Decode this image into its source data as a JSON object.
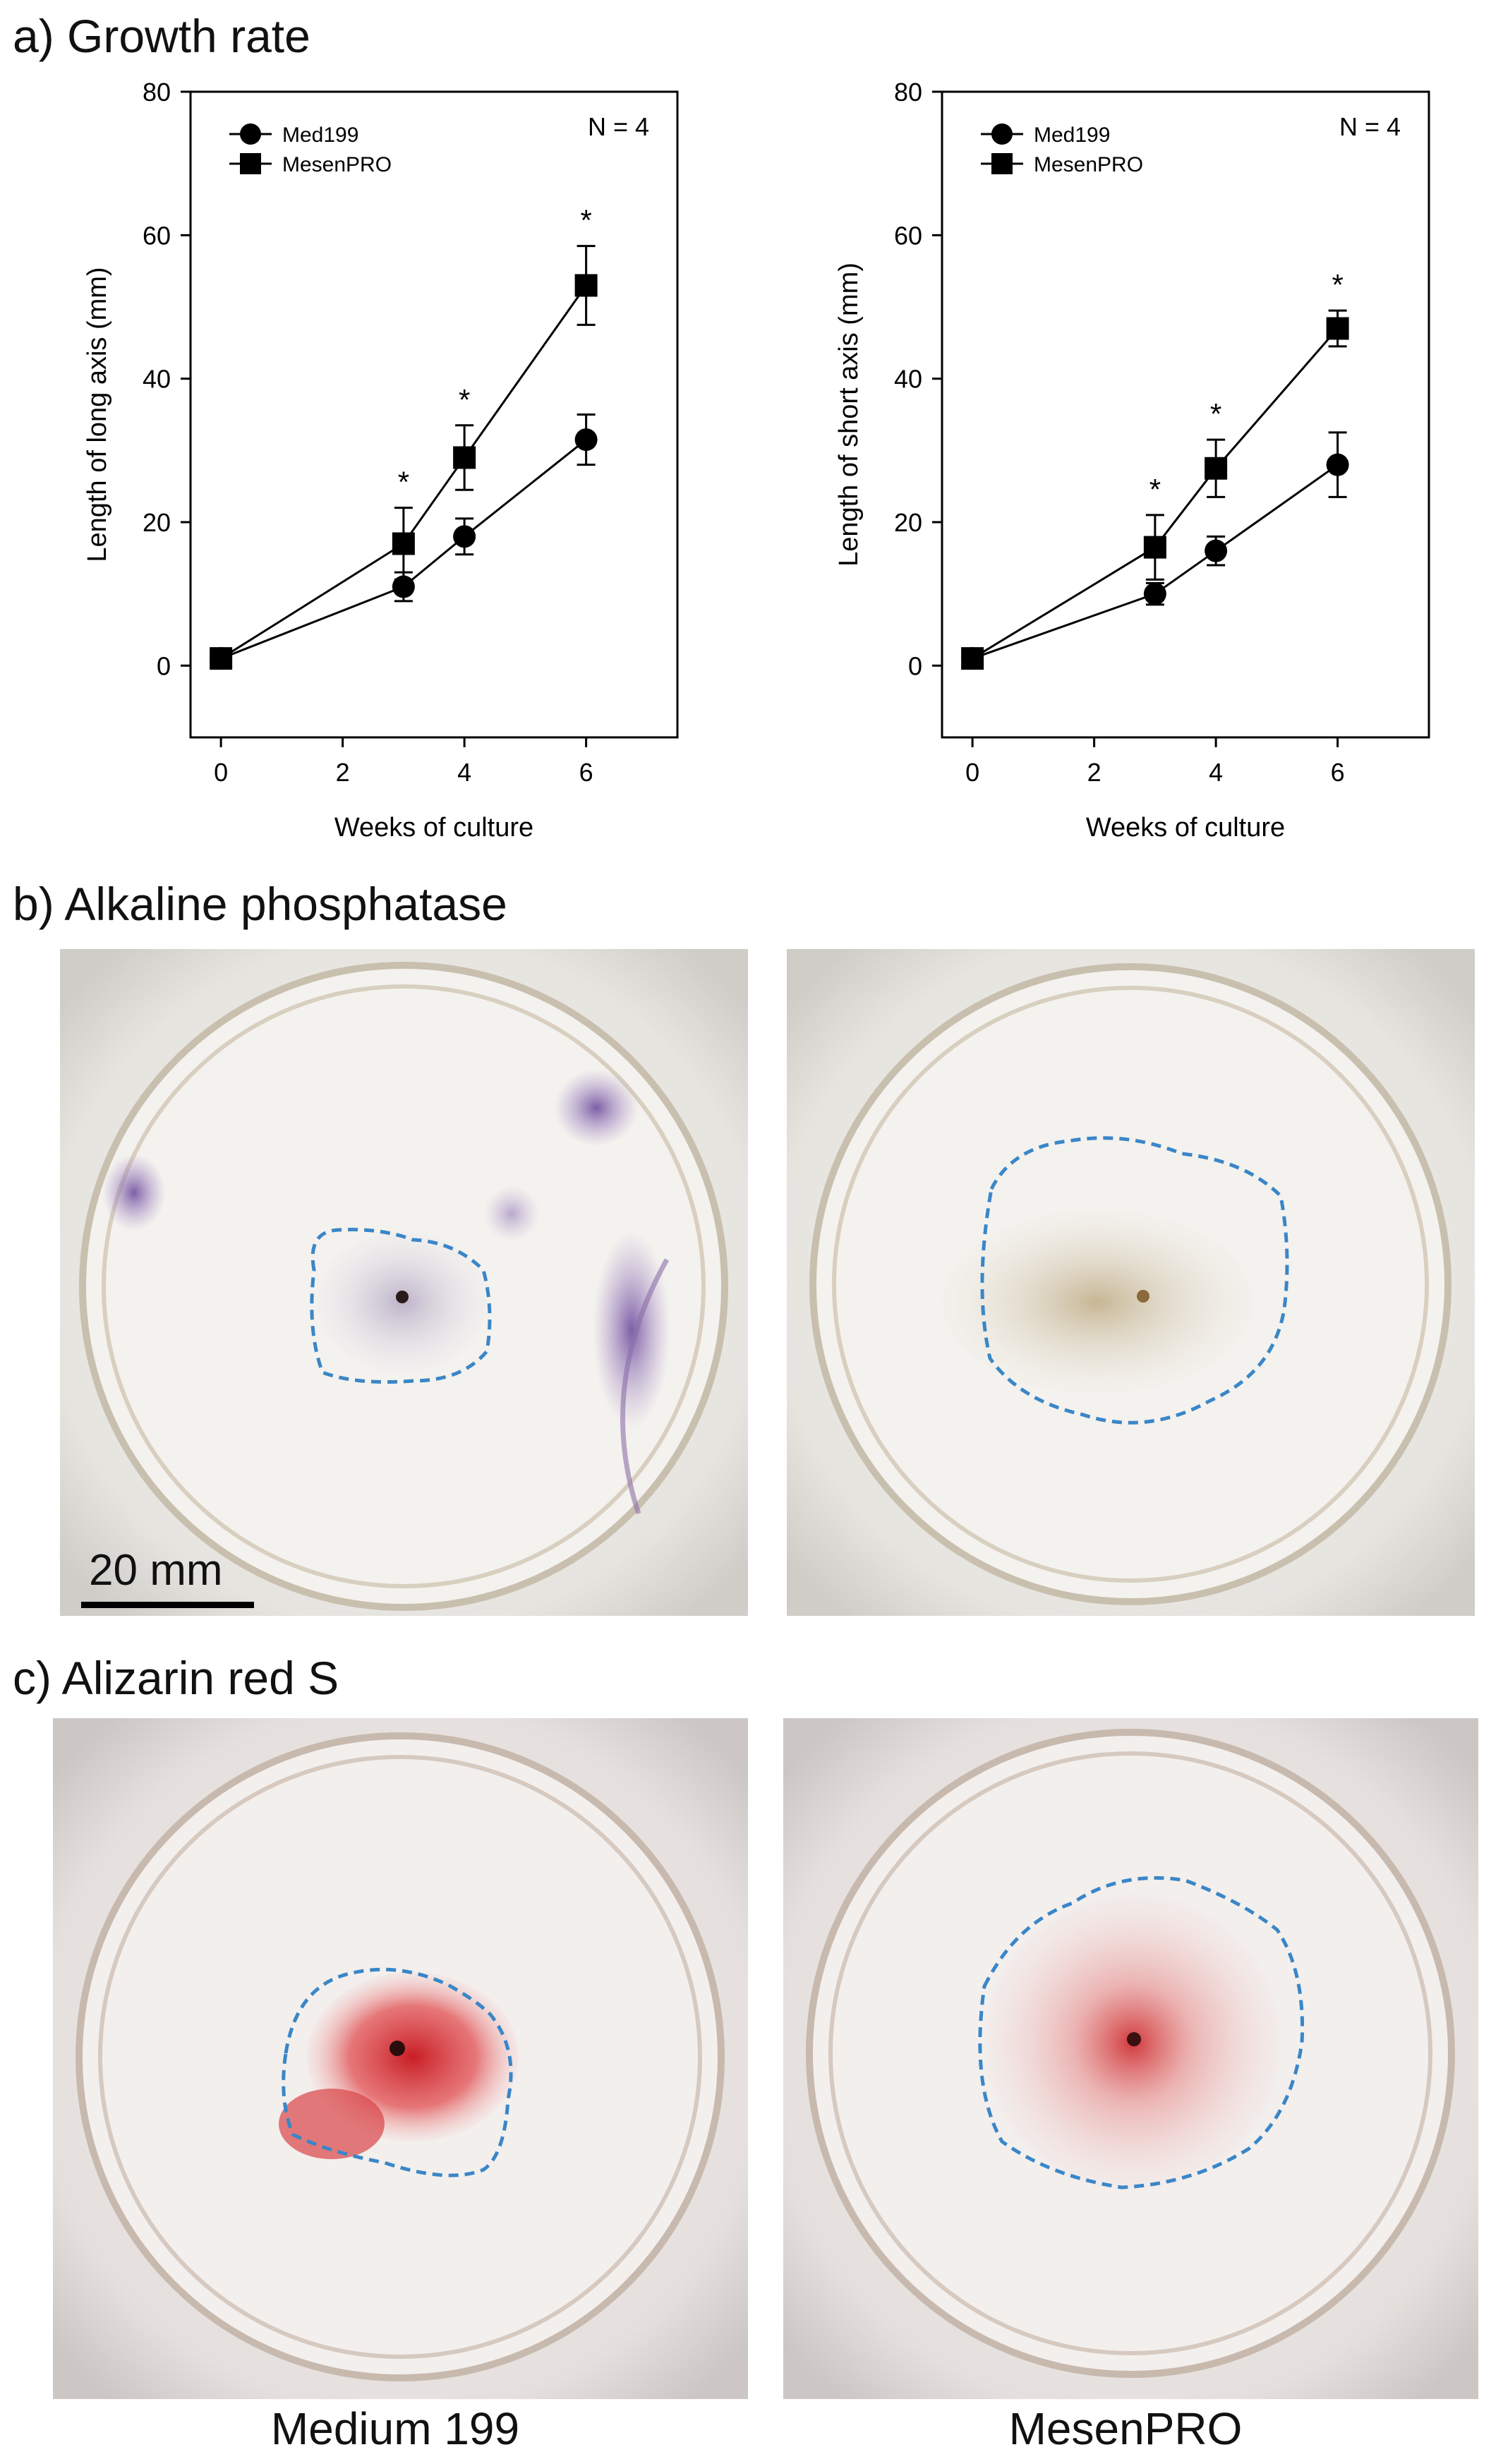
{
  "headings": {
    "a": "a) Growth rate",
    "b": "b) Alkaline phosphatase",
    "c": "c) Alizarin red S"
  },
  "scale_bar_label": "20 mm",
  "captions": [
    "Medium 199",
    "MesenPRO"
  ],
  "colors": {
    "outline_dash": "#3a86c8",
    "alp_stain": "#7a5aa8",
    "alizarin_stain": "#d8262b"
  },
  "chart_data": [
    {
      "type": "line",
      "title": "",
      "xlabel": "Weeks of culture",
      "ylabel": "Length of long axis (mm)",
      "xlim": [
        -0.5,
        7.5
      ],
      "ylim": [
        -10,
        80
      ],
      "xticks": [
        0,
        2,
        4,
        6
      ],
      "yticks": [
        0,
        20,
        40,
        60,
        80
      ],
      "annotation": "N = 4",
      "significance_marker": "*",
      "significant_x": [
        3,
        4,
        6
      ],
      "legend_position": "top-left",
      "series": [
        {
          "name": "Med199",
          "marker": "circle",
          "x": [
            0,
            3,
            4,
            6
          ],
          "y": [
            1,
            11,
            18,
            31.5
          ],
          "err": [
            0.5,
            2,
            2.5,
            3.5
          ]
        },
        {
          "name": "MesenPRO",
          "marker": "square",
          "x": [
            0,
            3,
            4,
            6
          ],
          "y": [
            1,
            17,
            29,
            53
          ],
          "err": [
            0.5,
            5,
            4.5,
            5.5
          ]
        }
      ]
    },
    {
      "type": "line",
      "title": "",
      "xlabel": "Weeks of culture",
      "ylabel": "Length of short axis (mm)",
      "xlim": [
        -0.5,
        7.5
      ],
      "ylim": [
        -10,
        80
      ],
      "xticks": [
        0,
        2,
        4,
        6
      ],
      "yticks": [
        0,
        20,
        40,
        60,
        80
      ],
      "annotation": "N = 4",
      "significance_marker": "*",
      "significant_x": [
        3,
        4,
        6
      ],
      "legend_position": "top-left",
      "series": [
        {
          "name": "Med199",
          "marker": "circle",
          "x": [
            0,
            3,
            4,
            6
          ],
          "y": [
            1,
            10,
            16,
            28
          ],
          "err": [
            0.5,
            1.5,
            2,
            4.5
          ]
        },
        {
          "name": "MesenPRO",
          "marker": "square",
          "x": [
            0,
            3,
            4,
            6
          ],
          "y": [
            1,
            16.5,
            27.5,
            47
          ],
          "err": [
            0.5,
            4.5,
            4,
            2.5
          ]
        }
      ]
    }
  ]
}
